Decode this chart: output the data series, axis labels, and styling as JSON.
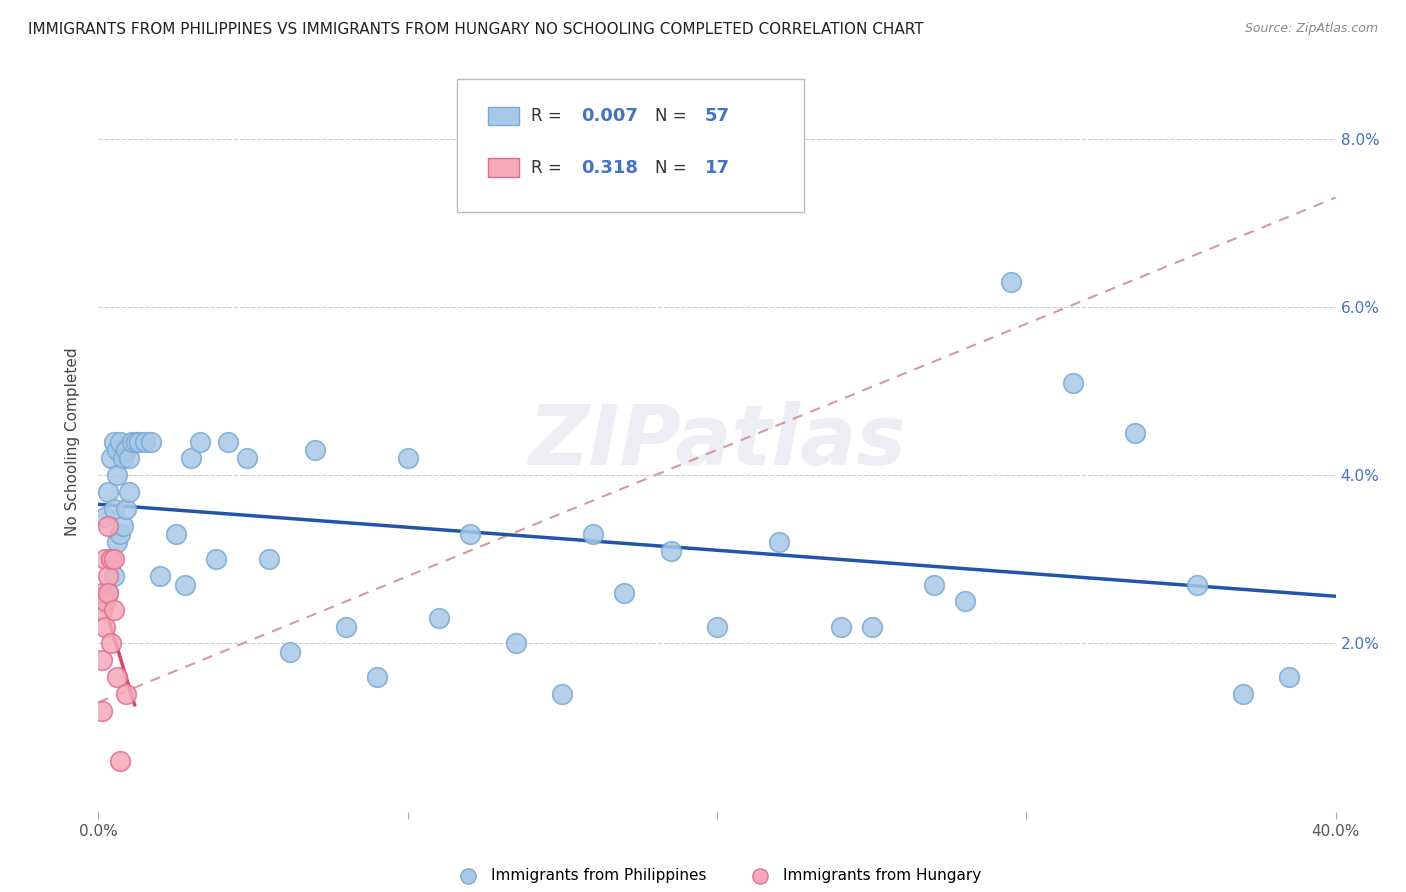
{
  "title": "IMMIGRANTS FROM PHILIPPINES VS IMMIGRANTS FROM HUNGARY NO SCHOOLING COMPLETED CORRELATION CHART",
  "source": "Source: ZipAtlas.com",
  "ylabel": "No Schooling Completed",
  "xlim": [
    0.0,
    0.4
  ],
  "ylim": [
    0.0,
    0.088
  ],
  "xticks": [
    0.0,
    0.1,
    0.2,
    0.3,
    0.4
  ],
  "xticklabels": [
    "0.0%",
    "",
    "",
    "",
    "40.0%"
  ],
  "yticks": [
    0.0,
    0.02,
    0.04,
    0.06,
    0.08
  ],
  "yticklabels_right": [
    "",
    "2.0%",
    "4.0%",
    "6.0%",
    "8.0%"
  ],
  "legend_r1": "0.007",
  "legend_n1": "57",
  "legend_r2": "0.318",
  "legend_n2": "17",
  "color_philippines": "#a8c8e8",
  "color_hungary": "#f4a8b8",
  "edge_philippines": "#7aaad0",
  "edge_hungary": "#e07090",
  "trendline_color_philippines": "#2255aa",
  "trendline_color_hungary": "#dd4466",
  "trendline_dashed_color": "#d09090",
  "watermark": "ZIPatlas",
  "philippines_x": [
    0.002,
    0.003,
    0.003,
    0.004,
    0.004,
    0.005,
    0.005,
    0.005,
    0.006,
    0.006,
    0.006,
    0.007,
    0.007,
    0.008,
    0.008,
    0.009,
    0.009,
    0.01,
    0.01,
    0.011,
    0.012,
    0.013,
    0.015,
    0.017,
    0.02,
    0.025,
    0.028,
    0.03,
    0.033,
    0.038,
    0.042,
    0.048,
    0.055,
    0.062,
    0.07,
    0.08,
    0.09,
    0.1,
    0.11,
    0.12,
    0.135,
    0.15,
    0.17,
    0.185,
    0.2,
    0.22,
    0.25,
    0.27,
    0.295,
    0.315,
    0.335,
    0.355,
    0.37,
    0.385,
    0.28,
    0.24,
    0.16
  ],
  "philippines_y": [
    0.035,
    0.038,
    0.026,
    0.042,
    0.03,
    0.044,
    0.036,
    0.028,
    0.043,
    0.04,
    0.032,
    0.044,
    0.033,
    0.042,
    0.034,
    0.043,
    0.036,
    0.042,
    0.038,
    0.044,
    0.044,
    0.044,
    0.044,
    0.044,
    0.028,
    0.033,
    0.027,
    0.042,
    0.044,
    0.03,
    0.044,
    0.042,
    0.03,
    0.019,
    0.043,
    0.022,
    0.016,
    0.042,
    0.023,
    0.033,
    0.02,
    0.014,
    0.026,
    0.031,
    0.022,
    0.032,
    0.022,
    0.027,
    0.063,
    0.051,
    0.045,
    0.027,
    0.014,
    0.016,
    0.025,
    0.022,
    0.033
  ],
  "hungary_x": [
    0.001,
    0.001,
    0.001,
    0.001,
    0.002,
    0.002,
    0.002,
    0.003,
    0.003,
    0.003,
    0.004,
    0.004,
    0.005,
    0.005,
    0.006,
    0.007,
    0.009
  ],
  "hungary_y": [
    0.024,
    0.018,
    0.012,
    0.026,
    0.025,
    0.03,
    0.022,
    0.028,
    0.034,
    0.026,
    0.03,
    0.02,
    0.03,
    0.024,
    0.016,
    0.006,
    0.014
  ],
  "hungary_trend_x": [
    0.0,
    0.4
  ],
  "hungary_trend_y_start": 0.013,
  "hungary_trend_y_end": 0.073
}
